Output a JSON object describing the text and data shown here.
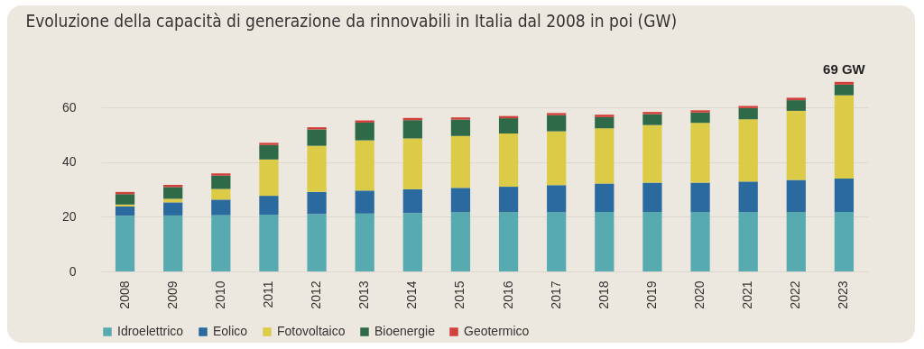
{
  "chart_data": {
    "type": "bar",
    "title": "Evoluzione della capacità di generazione da rinnovabili in Italia dal 2008 in poi (GW)",
    "categories": [
      "2008",
      "2009",
      "2010",
      "2011",
      "2012",
      "2013",
      "2014",
      "2015",
      "2016",
      "2017",
      "2018",
      "2019",
      "2020",
      "2021",
      "2022",
      "2023"
    ],
    "stacked": true,
    "series": [
      {
        "name": "Idroelettrico",
        "color": "#57abb0",
        "values": [
          20.4,
          20.5,
          20.6,
          20.8,
          21.0,
          21.2,
          21.4,
          21.7,
          21.7,
          21.7,
          21.8,
          21.8,
          21.7,
          21.7,
          21.8,
          21.8
        ]
      },
      {
        "name": "Eolico",
        "color": "#2b6a9e",
        "values": [
          3.4,
          4.8,
          5.7,
          6.9,
          8.1,
          8.4,
          8.7,
          8.9,
          9.3,
          9.9,
          10.4,
          10.7,
          10.8,
          11.2,
          11.7,
          12.2
        ]
      },
      {
        "name": "Fotovoltaico",
        "color": "#dccb47",
        "values": [
          0.7,
          1.3,
          3.9,
          13.3,
          16.9,
          18.4,
          18.6,
          19.0,
          19.5,
          19.7,
          20.2,
          21.1,
          21.9,
          22.8,
          25.3,
          30.5
        ]
      },
      {
        "name": "Bioenergie",
        "color": "#2e6a48",
        "values": [
          3.8,
          4.3,
          4.9,
          5.3,
          6.0,
          6.5,
          6.7,
          6.0,
          5.6,
          5.9,
          4.1,
          4.0,
          3.8,
          4.1,
          3.9,
          3.9
        ]
      },
      {
        "name": "Geotermico",
        "color": "#d2403c",
        "values": [
          0.8,
          0.8,
          0.8,
          0.8,
          0.8,
          0.8,
          0.8,
          0.8,
          0.8,
          0.8,
          0.9,
          0.8,
          0.8,
          0.8,
          0.9,
          1.0
        ]
      }
    ],
    "ylim": [
      0,
      70
    ],
    "yticks": [
      0,
      20,
      40,
      60
    ],
    "grid": "y",
    "legend": "bottom",
    "annotations": [
      {
        "text": "69 GW",
        "x": "2023",
        "y": 69.4
      }
    ]
  }
}
